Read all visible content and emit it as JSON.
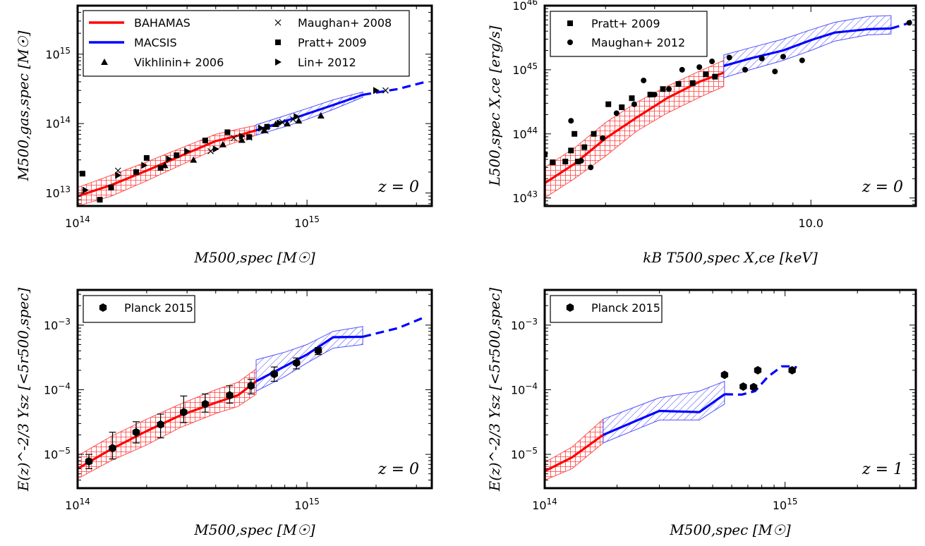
{
  "chart_data": [
    {
      "type": "line",
      "panel": "top-left",
      "xscale": "log",
      "yscale": "log",
      "xlim": [
        100000000000000.0,
        3500000000000000.0
      ],
      "ylim": [
        6500000000000.0,
        5000000000000000.0
      ],
      "xlabel": "M500,spec [M☉]",
      "ylabel": "M500,gas,spec [M☉]",
      "x_ticks": [
        {
          "value": 100000000000000.0,
          "label": "10^14"
        },
        {
          "value": 1000000000000000.0,
          "label": "10^15"
        }
      ],
      "y_ticks": [
        {
          "value": 10000000000000.0,
          "label": "10^13"
        },
        {
          "value": 100000000000000.0,
          "label": "10^14"
        },
        {
          "value": 1000000000000000.0,
          "label": "10^15"
        }
      ],
      "annotation": "z = 0",
      "legend_position": "top",
      "legend": [
        "BAHAMAS",
        "MACSIS",
        "Vikhlinin+ 2006",
        "Maughan+ 2008",
        "Pratt+ 2009",
        "Lin+ 2012"
      ],
      "series": [
        {
          "name": "BAHAMAS",
          "color": "#ff0000",
          "style": "solid",
          "x": [
            100000000000000.0,
            140000000000000.0,
            200000000000000.0,
            280000000000000.0,
            400000000000000.0,
            500000000000000.0,
            600000000000000.0
          ],
          "y": [
            9000000000000.0,
            13000000000000.0,
            21000000000000.0,
            34000000000000.0,
            56000000000000.0,
            67000000000000.0,
            80000000000000.0
          ],
          "lo": [
            6500000000000.0,
            9000000000000.0,
            15000000000000.0,
            25000000000000.0,
            43000000000000.0,
            55000000000000.0,
            68000000000000.0
          ],
          "hi": [
            12000000000000.0,
            18000000000000.0,
            28000000000000.0,
            44000000000000.0,
            70000000000000.0,
            83000000000000.0,
            94000000000000.0
          ]
        },
        {
          "name": "MACSIS",
          "color": "#0000ff",
          "style": "solid",
          "x": [
            600000000000000.0,
            800000000000000.0,
            1000000000000000.0,
            1300000000000000.0,
            1750000000000000.0
          ],
          "y": [
            80000000000000.0,
            108000000000000.0,
            138000000000000.0,
            185000000000000.0,
            260000000000000.0
          ],
          "lo": [
            68000000000000.0,
            90000000000000.0,
            115000000000000.0,
            160000000000000.0,
            240000000000000.0
          ],
          "hi": [
            96000000000000.0,
            130000000000000.0,
            165000000000000.0,
            220000000000000.0,
            285000000000000.0
          ]
        },
        {
          "name": "MACSIS extrapolation",
          "color": "#0000ff",
          "style": "dashed",
          "x": [
            1750000000000000.0,
            2500000000000000.0,
            3300000000000000.0
          ],
          "y": [
            260000000000000.0,
            315000000000000.0,
            400000000000000.0
          ]
        }
      ],
      "points": [
        {
          "name": "Vikhlinin+ 2006",
          "marker": "triangle",
          "x": [
            240000000000000.0,
            320000000000000.0,
            430000000000000.0,
            520000000000000.0,
            650000000000000.0,
            730000000000000.0,
            820000000000000.0,
            920000000000000.0,
            1150000000000000.0
          ],
          "y": [
            25000000000000.0,
            30000000000000.0,
            50000000000000.0,
            58000000000000.0,
            80000000000000.0,
            98000000000000.0,
            100000000000000.0,
            110000000000000.0,
            130000000000000.0
          ]
        },
        {
          "name": "Maughan+ 2008",
          "marker": "x",
          "x": [
            150000000000000.0,
            380000000000000.0,
            480000000000000.0,
            560000000000000.0,
            660000000000000.0,
            780000000000000.0,
            870000000000000.0,
            2200000000000000.0
          ],
          "y": [
            21000000000000.0,
            40000000000000.0,
            62000000000000.0,
            63000000000000.0,
            79000000000000.0,
            105000000000000.0,
            115000000000000.0,
            300000000000000.0
          ]
        },
        {
          "name": "Pratt+ 2009",
          "marker": "square",
          "x": [
            105000000000000.0,
            125000000000000.0,
            140000000000000.0,
            180000000000000.0,
            200000000000000.0,
            230000000000000.0,
            270000000000000.0,
            360000000000000.0,
            450000000000000.0,
            560000000000000.0,
            670000000000000.0
          ],
          "y": [
            19000000000000.0,
            8000000000000.0,
            12000000000000.0,
            20000000000000.0,
            32000000000000.0,
            23000000000000.0,
            35000000000000.0,
            57000000000000.0,
            75000000000000.0,
            64000000000000.0,
            90000000000000.0
          ]
        },
        {
          "name": "Lin+ 2012",
          "marker": "triangle-right",
          "x": [
            108000000000000.0,
            150000000000000.0,
            195000000000000.0,
            250000000000000.0,
            300000000000000.0,
            400000000000000.0,
            520000000000000.0,
            630000000000000.0,
            760000000000000.0,
            900000000000000.0,
            2000000000000000.0
          ],
          "y": [
            11000000000000.0,
            18000000000000.0,
            25000000000000.0,
            31000000000000.0,
            40000000000000.0,
            43000000000000.0,
            66000000000000.0,
            86000000000000.0,
            102000000000000.0,
            126000000000000.0,
            300000000000000.0
          ]
        }
      ]
    },
    {
      "type": "line",
      "panel": "top-right",
      "xscale": "log",
      "yscale": "log",
      "xlim": [
        2.1,
        18.5
      ],
      "ylim": [
        7.5e+42,
        1e+46
      ],
      "xlabel": "kB T500,spec X,ce [keV]",
      "ylabel": "L500,spec X,ce [erg/s]",
      "x_ticks": [
        {
          "value": 10,
          "label": "10.0"
        }
      ],
      "y_ticks": [
        {
          "value": 1e+43,
          "label": "10^43"
        },
        {
          "value": 1e+44,
          "label": "10^44"
        },
        {
          "value": 1e+45,
          "label": "10^45"
        },
        {
          "value": 1e+46,
          "label": "10^46"
        }
      ],
      "annotation": "z = 0",
      "legend_position": "top-left",
      "legend": [
        "Pratt+ 2009",
        "Maughan+ 2012"
      ],
      "series": [
        {
          "name": "BAHAMAS",
          "color": "#ff0000",
          "style": "solid",
          "x": [
            2.1,
            2.5,
            3.0,
            3.6,
            4.3,
            5.2,
            6.0
          ],
          "y": [
            1.7e+43,
            3.4e+43,
            8.5e+43,
            1.8e+44,
            3.6e+44,
            6.5e+44,
            9e+44
          ],
          "lo": [
            1e+43,
            2e+43,
            4.5e+43,
            1.1e+44,
            2.1e+44,
            3.7e+44,
            5.5e+44
          ],
          "hi": [
            3e+43,
            6e+43,
            1.5e+44,
            3.1e+44,
            5.5e+44,
            9.5e+44,
            1.4e+45
          ]
        },
        {
          "name": "MACSIS",
          "color": "#0000ff",
          "style": "solid",
          "x": [
            6.0,
            7.0,
            8.5,
            10.0,
            11.5,
            14.0,
            16.0
          ],
          "y": [
            1.15e+45,
            1.5e+45,
            2e+45,
            2.9e+45,
            3.8e+45,
            4.3e+45,
            4.4e+45
          ],
          "lo": [
            7.5e+44,
            1e+45,
            1.4e+45,
            2e+45,
            2.8e+45,
            3.5e+45,
            3.6e+45
          ],
          "hi": [
            1.7e+45,
            2.2e+45,
            3e+45,
            4.2e+45,
            5.5e+45,
            6.8e+45,
            7e+45
          ]
        },
        {
          "name": "MACSIS extrapolation",
          "color": "#0000ff",
          "style": "dashed",
          "x": [
            16.0,
            17.5,
            18.5
          ],
          "y": [
            4.4e+45,
            5.2e+45,
            6.6e+45
          ]
        }
      ],
      "points": [
        {
          "name": "Pratt+ 2009",
          "marker": "square",
          "x": [
            2.1,
            2.2,
            2.37,
            2.45,
            2.5,
            2.55,
            2.65,
            2.8,
            3.05,
            3.3,
            3.5,
            3.9,
            4.2,
            4.6,
            5.0,
            5.4,
            5.7
          ],
          "y": [
            4.8e+43,
            3.6e+43,
            3.7e+43,
            5.5e+43,
            1e+44,
            3.7e+43,
            6.2e+43,
            1e+44,
            2.9e+44,
            2.6e+44,
            3.6e+44,
            4.1e+44,
            5e+44,
            6e+44,
            6.2e+44,
            8.5e+44,
            7.8e+44
          ]
        },
        {
          "name": "Maughan+ 2012",
          "marker": "circle",
          "x": [
            2.45,
            2.6,
            2.75,
            2.95,
            3.2,
            3.55,
            3.75,
            4.0,
            4.35,
            4.7,
            5.2,
            5.6,
            6.2,
            6.8,
            7.5,
            8.1,
            8.5,
            9.5,
            17.8
          ],
          "y": [
            1.6e+44,
            3.8e+43,
            3e+43,
            8.6e+43,
            2.1e+44,
            2.9e+44,
            6.8e+44,
            4.1e+44,
            5e+44,
            1e+45,
            1.1e+45,
            1.35e+45,
            1.55e+45,
            1e+45,
            1.5e+45,
            9.4e+44,
            1.6e+45,
            1.4e+45,
            5.4e+45
          ]
        }
      ]
    },
    {
      "type": "line",
      "panel": "bottom-left",
      "xscale": "log",
      "yscale": "log",
      "xlim": [
        100000000000000.0,
        3500000000000000.0
      ],
      "ylim": [
        3e-06,
        0.0035
      ],
      "xlabel": "M500,spec [M☉]",
      "ylabel": "E(z)^-2/3 Ysz [<5r500,spec]",
      "x_ticks": [
        {
          "value": 100000000000000.0,
          "label": "10^14"
        },
        {
          "value": 1000000000000000.0,
          "label": "10^15"
        }
      ],
      "y_ticks": [
        {
          "value": 1e-05,
          "label": "10^-5"
        },
        {
          "value": 0.0001,
          "label": "10^-4"
        },
        {
          "value": 0.001,
          "label": "10^-3"
        }
      ],
      "annotation": "z = 0",
      "legend_position": "top-left",
      "legend": [
        "Planck 2015"
      ],
      "series": [
        {
          "name": "BAHAMAS",
          "color": "#ff0000",
          "style": "solid",
          "x": [
            100000000000000.0,
            140000000000000.0,
            200000000000000.0,
            280000000000000.0,
            400000000000000.0,
            500000000000000.0,
            600000000000000.0
          ],
          "y": [
            6e-06,
            1.2e-05,
            2.3e-05,
            4e-05,
            6.3e-05,
            8.2e-05,
            0.000135
          ],
          "lo": [
            4.2e-06,
            8e-06,
            1.4e-05,
            2.6e-05,
            4.3e-05,
            5.5e-05,
            8.5e-05
          ],
          "hi": [
            9.5e-06,
            1.9e-05,
            3.5e-05,
            6e-05,
            0.0001,
            0.00013,
            0.00021
          ]
        },
        {
          "name": "MACSIS",
          "color": "#0000ff",
          "style": "solid",
          "x": [
            600000000000000.0,
            800000000000000.0,
            1000000000000000.0,
            1300000000000000.0,
            1750000000000000.0
          ],
          "y": [
            0.000135,
            0.00023,
            0.00035,
            0.00065,
            0.00066
          ],
          "lo": [
            9.5e-05,
            0.00016,
            0.00026,
            0.00044,
            0.0005
          ],
          "hi": [
            0.00029,
            0.00038,
            0.0005,
            0.0008,
            0.00095
          ]
        },
        {
          "name": "MACSIS extrapolation",
          "color": "#0000ff",
          "style": "dashed",
          "x": [
            1750000000000000.0,
            2500000000000000.0,
            3300000000000000.0
          ],
          "y": [
            0.00066,
            0.0009,
            0.00135
          ]
        }
      ],
      "points": [
        {
          "name": "Planck 2015",
          "marker": "hexagon",
          "x": [
            112000000000000.0,
            142000000000000.0,
            180000000000000.0,
            230000000000000.0,
            290000000000000.0,
            360000000000000.0,
            460000000000000.0,
            570000000000000.0,
            720000000000000.0,
            900000000000000.0,
            1120000000000000.0
          ],
          "y": [
            7.8e-06,
            1.25e-05,
            2.2e-05,
            2.9e-05,
            4.5e-05,
            6e-05,
            8.2e-05,
            0.000115,
            0.000175,
            0.00026,
            0.0004
          ],
          "err_lo": [
            6e-06,
            8.5e-06,
            1.5e-05,
            1.8e-05,
            3.1e-05,
            4.5e-05,
            6.2e-05,
            8.6e-05,
            0.000135,
            0.00021,
            0.00035
          ],
          "err_hi": [
            1e-05,
            2.2e-05,
            3.2e-05,
            4.2e-05,
            8e-05,
            8.6e-05,
            0.000115,
            0.000145,
            0.000225,
            0.00031,
            0.00045
          ]
        }
      ]
    },
    {
      "type": "line",
      "panel": "bottom-right",
      "xscale": "log",
      "yscale": "log",
      "xlim": [
        100000000000000.0,
        3500000000000000.0
      ],
      "ylim": [
        3e-06,
        0.0035
      ],
      "xlabel": "M500,spec [M☉]",
      "ylabel": "E(z)^-2/3 Ysz [<5r500,spec]",
      "x_ticks": [
        {
          "value": 100000000000000.0,
          "label": "10^14"
        },
        {
          "value": 1000000000000000.0,
          "label": "10^15"
        }
      ],
      "y_ticks": [
        {
          "value": 1e-05,
          "label": "10^-5"
        },
        {
          "value": 0.0001,
          "label": "10^-4"
        },
        {
          "value": 0.001,
          "label": "10^-3"
        }
      ],
      "annotation": "z = 1",
      "legend_position": "top-left",
      "legend": [
        "Planck 2015"
      ],
      "series": [
        {
          "name": "BAHAMAS",
          "color": "#ff0000",
          "style": "solid",
          "x": [
            100000000000000.0,
            130000000000000.0,
            175000000000000.0
          ],
          "y": [
            5.5e-06,
            9e-06,
            2e-05
          ],
          "lo": [
            4e-06,
            6e-06,
            1.5e-05
          ],
          "hi": [
            7.5e-06,
            1.3e-05,
            3.5e-05
          ]
        },
        {
          "name": "MACSIS",
          "color": "#0000ff",
          "style": "solid",
          "x": [
            175000000000000.0,
            300000000000000.0,
            440000000000000.0,
            560000000000000.0
          ],
          "y": [
            2e-05,
            4.7e-05,
            4.5e-05,
            8.5e-05
          ],
          "lo": [
            1.5e-05,
            3.4e-05,
            3.4e-05,
            6e-05
          ],
          "hi": [
            3.5e-05,
            7.5e-05,
            9.5e-05,
            0.000135
          ]
        },
        {
          "name": "MACSIS extrapolation",
          "color": "#0000ff",
          "style": "dashed",
          "x": [
            560000000000000.0,
            660000000000000.0,
            750000000000000.0,
            850000000000000.0,
            970000000000000.0,
            1070000000000000.0,
            1120000000000000.0
          ],
          "y": [
            8.5e-05,
            8.4e-05,
            9.5e-05,
            0.00016,
            0.00023,
            0.00023,
            0.00022
          ]
        }
      ],
      "points": [
        {
          "name": "Planck 2015",
          "marker": "hexagon",
          "x": [
            560000000000000.0,
            670000000000000.0,
            740000000000000.0,
            770000000000000.0,
            1070000000000000.0
          ],
          "y": [
            0.00017,
            0.000112,
            0.00011,
            0.0002,
            0.0002
          ]
        }
      ]
    }
  ]
}
